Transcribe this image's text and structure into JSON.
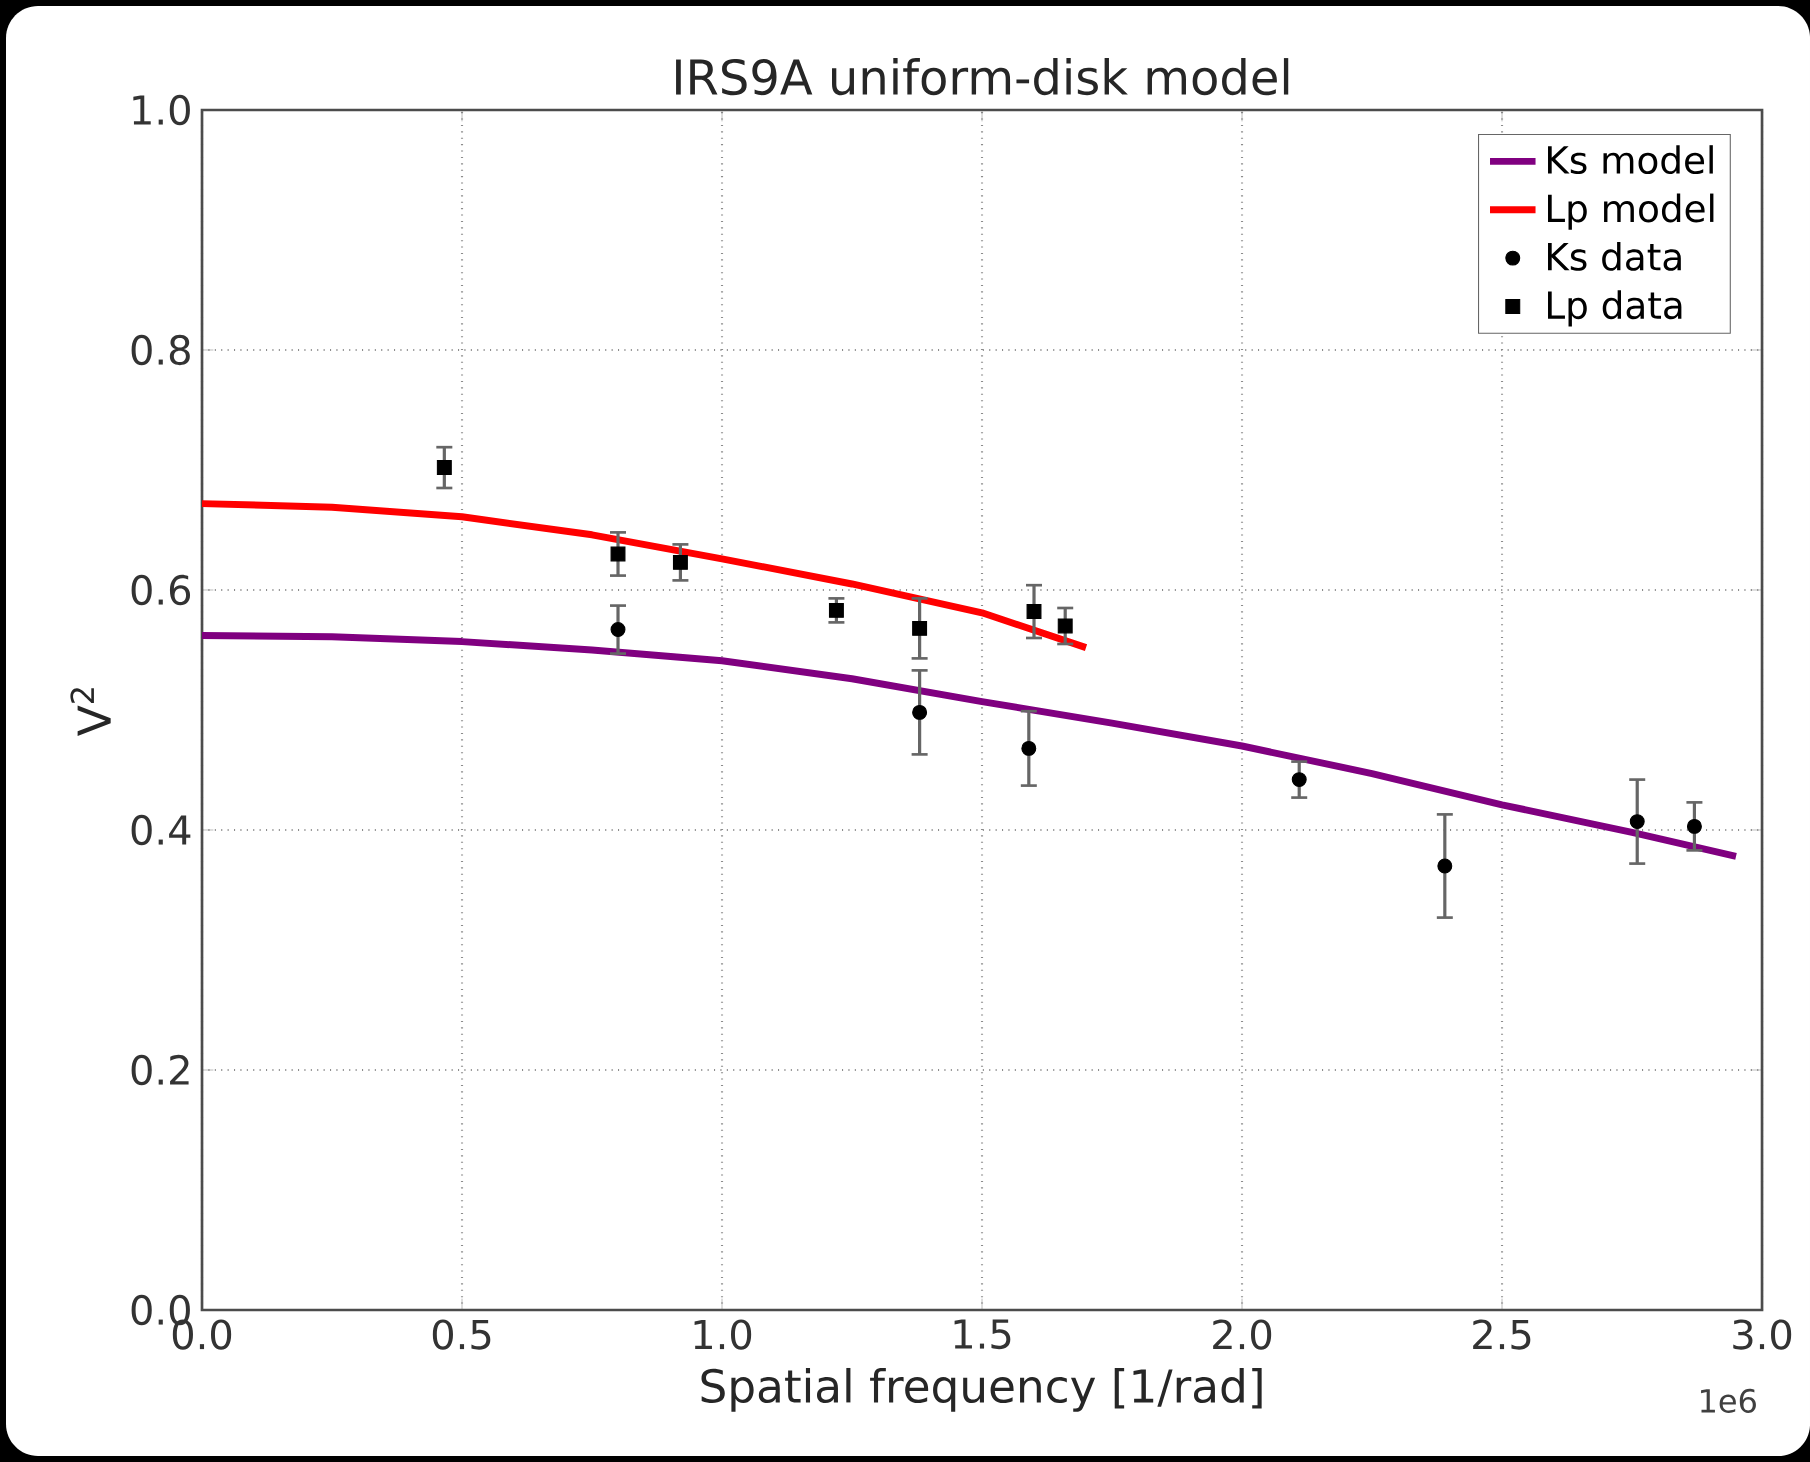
{
  "chart_data": {
    "type": "scatter",
    "title": "IRS9A uniform-disk model",
    "xlabel": "Spatial frequency [1/rad]",
    "ylabel": "V$^{2}$",
    "annotations": [
      "1e6"
    ],
    "xlim": [
      0,
      3
    ],
    "ylim": [
      0,
      1
    ],
    "xticks": [
      {
        "value": 0,
        "label": "0.0"
      },
      {
        "value": 0.5,
        "label": "0.5"
      },
      {
        "value": 1,
        "label": "1.0"
      },
      {
        "value": 1.5,
        "label": "1.5"
      },
      {
        "value": 2,
        "label": "2.0"
      },
      {
        "value": 2.5,
        "label": "2.5"
      },
      {
        "value": 3,
        "label": "3.0"
      }
    ],
    "yticks": [
      {
        "value": 0,
        "label": "0.0"
      },
      {
        "value": 0.2,
        "label": "0.2"
      },
      {
        "value": 0.4,
        "label": "0.4"
      },
      {
        "value": 0.6,
        "label": "0.6"
      },
      {
        "value": 0.8,
        "label": "0.8"
      },
      {
        "value": 1,
        "label": "1.0"
      }
    ],
    "grid": true,
    "legend": "top right",
    "series": [
      {
        "name": "Ks model",
        "type": "line",
        "color": "#800080",
        "line_style": "solid",
        "marker": "none",
        "x": [
          0,
          0.25,
          0.5,
          0.75,
          1.0,
          1.25,
          1.5,
          1.75,
          2.0,
          2.25,
          2.5,
          2.75,
          2.95
        ],
        "values": [
          0.562,
          0.561,
          0.557,
          0.55,
          0.541,
          0.526,
          0.507,
          0.489,
          0.47,
          0.447,
          0.421,
          0.398,
          0.378
        ]
      },
      {
        "name": "Lp model",
        "type": "line",
        "color": "#ff0000",
        "line_style": "solid",
        "marker": "none",
        "x": [
          0,
          0.25,
          0.5,
          0.75,
          1.0,
          1.25,
          1.5,
          1.7
        ],
        "values": [
          0.672,
          0.669,
          0.661,
          0.646,
          0.626,
          0.605,
          0.581,
          0.552
        ]
      },
      {
        "name": "Ks data",
        "color": "#000000",
        "marker": "circle",
        "x": [
          0.8,
          1.38,
          1.59,
          2.11,
          2.39,
          2.76,
          2.87
        ],
        "values": [
          0.567,
          0.498,
          0.468,
          0.442,
          0.37,
          0.407,
          0.403
        ],
        "errors": [
          0.02,
          0.035,
          0.031,
          0.015,
          0.043,
          0.035,
          0.02
        ]
      },
      {
        "name": "Lp data",
        "color": "#000000",
        "marker": "square",
        "x": [
          0.466,
          0.8,
          0.92,
          1.22,
          1.38,
          1.6,
          1.66
        ],
        "values": [
          0.702,
          0.63,
          0.623,
          0.583,
          0.568,
          0.582,
          0.57
        ],
        "errors": [
          0.017,
          0.018,
          0.015,
          0.01,
          0.025,
          0.022,
          0.015
        ]
      }
    ]
  }
}
